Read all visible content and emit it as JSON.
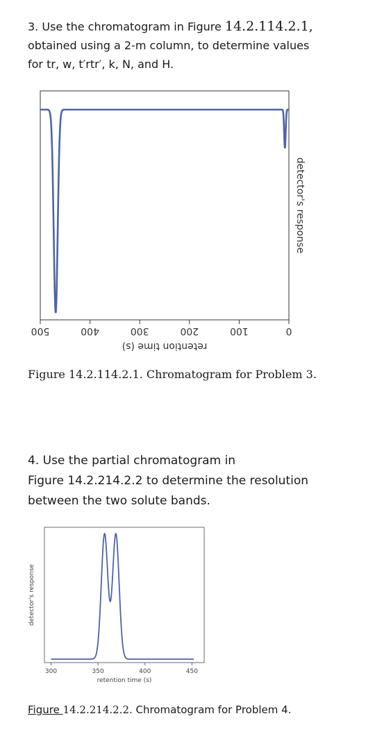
{
  "problem3": {
    "prefix": "3. Use the chromatogram in Figure ",
    "figure_ref": "14.2.114.2.1,",
    "line2": "obtained using a 2-m column, to determine values",
    "line3": "for tr, w, t′rtr′, k, N, and H."
  },
  "figure1": {
    "caption_ref": "Figure 14.2.114.2.1.",
    "caption_text": " Chromatogram for Problem 3."
  },
  "problem4": {
    "line1": "4. Use the partial chromatogram in",
    "line2": "Figure 14.2.214.2.2 to determine the resolution",
    "line3": "between the two solute bands."
  },
  "figure2": {
    "caption_link": "Figure ",
    "caption_ref": "14.2.214.2.2.",
    "caption_text": " Chromatogram for Problem 4."
  },
  "chart_data": [
    {
      "type": "line",
      "xlabel": "retention time (s)",
      "ylabel": "detector's response",
      "orientation": "rotated 180 degrees",
      "xlim": [
        0,
        500
      ],
      "x_ticks": [
        0,
        100,
        200,
        300,
        400,
        500
      ],
      "series": [
        {
          "peaks": [
            {
              "x": 8,
              "height": 0.19,
              "width": 1.5
            },
            {
              "x": 469,
              "height": 1.0,
              "width": 4
            }
          ]
        }
      ],
      "baseline": 0.03,
      "color": "#4e64a6"
    },
    {
      "type": "line",
      "xlabel": "retention time (s)",
      "ylabel": "detector's response",
      "xlim": [
        293,
        463
      ],
      "x_ticks": [
        300,
        350,
        400,
        450
      ],
      "series": [
        {
          "peaks": [
            {
              "x": 357,
              "height": 1.0,
              "width": 3.5
            },
            {
              "x": 369,
              "height": 1.0,
              "width": 3.5
            }
          ]
        }
      ],
      "baseline": 0.02,
      "color": "#4e64a6"
    }
  ]
}
